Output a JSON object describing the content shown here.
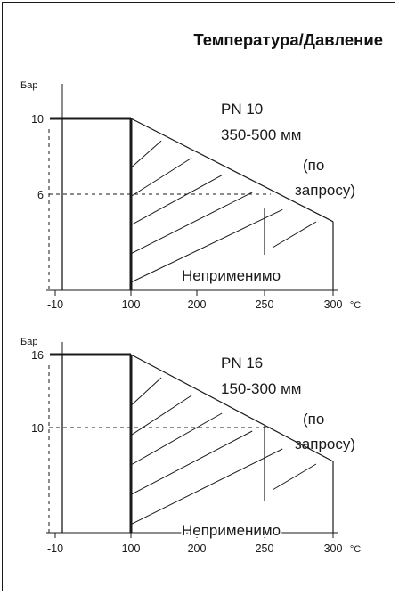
{
  "title": "Температура/Давление",
  "colors": {
    "line": "#1a1a1a",
    "background": "#ffffff"
  },
  "chart_data": [
    {
      "type": "area",
      "ylabel": "Бар",
      "xunit": "°C",
      "x_ticks": [
        "-10",
        "100",
        "200",
        "250",
        "300"
      ],
      "y_ticks": [
        "10",
        "6"
      ],
      "xlim": [
        -10,
        300
      ],
      "ylim": [
        0,
        10
      ],
      "series": [
        {
          "name": "",
          "x": [
            -10,
            100,
            100,
            300,
            300
          ],
          "y": [
            10,
            10,
            0,
            4,
            0
          ]
        },
        {
          "name": "",
          "x": [
            100,
            300
          ],
          "y": [
            10,
            4
          ]
        }
      ],
      "reference": {
        "x": 250,
        "y": 6
      },
      "annotations": {
        "pn": "PN 10",
        "size": "350-500 мм",
        "request_1": "(по",
        "request_2": "запросу)",
        "not_applicable": "Неприменимо"
      }
    },
    {
      "type": "area",
      "ylabel": "Бар",
      "xunit": "°C",
      "x_ticks": [
        "-10",
        "100",
        "200",
        "250",
        "300"
      ],
      "y_ticks": [
        "16",
        "10"
      ],
      "xlim": [
        -10,
        300
      ],
      "ylim": [
        0,
        16
      ],
      "series": [
        {
          "name": "",
          "x": [
            -10,
            100,
            100,
            300,
            300
          ],
          "y": [
            16,
            16,
            0,
            6.4,
            0
          ]
        },
        {
          "name": "",
          "x": [
            100,
            300
          ],
          "y": [
            16,
            6.4
          ]
        }
      ],
      "reference": {
        "x": 250,
        "y": 10
      },
      "annotations": {
        "pn": "PN 16",
        "size": "150-300 мм",
        "request_1": "(по",
        "request_2": "запросу)",
        "not_applicable": "Неприменимо"
      }
    }
  ]
}
